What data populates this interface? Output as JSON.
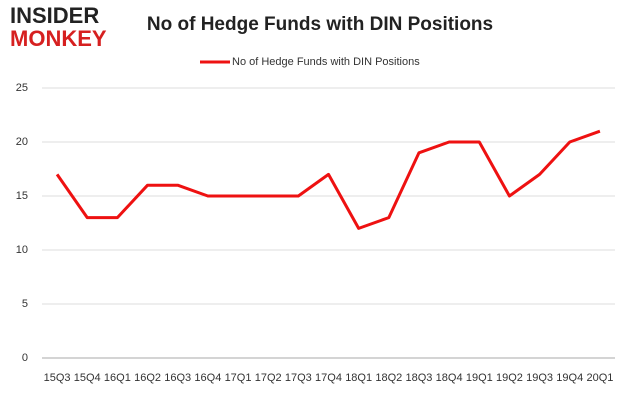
{
  "logo": {
    "top": "INSIDER",
    "bottom": "MONKEY"
  },
  "chart_data": {
    "type": "line",
    "title": "No of Hedge Funds with DIN Positions",
    "categories": [
      "15Q3",
      "15Q4",
      "16Q1",
      "16Q2",
      "16Q3",
      "16Q4",
      "17Q1",
      "17Q2",
      "17Q3",
      "17Q4",
      "18Q1",
      "18Q2",
      "18Q3",
      "18Q4",
      "19Q1",
      "19Q2",
      "19Q3",
      "19Q4",
      "20Q1"
    ],
    "series": [
      {
        "name": "No of Hedge Funds with DIN Positions",
        "color": "#ee1111",
        "values": [
          17,
          13,
          13,
          16,
          16,
          15,
          15,
          15,
          15,
          17,
          12,
          13,
          19,
          20,
          20,
          15,
          17,
          20,
          21
        ]
      }
    ],
    "ylim": [
      0,
      25
    ],
    "yticks": [
      0,
      5,
      10,
      15,
      20,
      25
    ],
    "grid": true,
    "legend": "top"
  }
}
